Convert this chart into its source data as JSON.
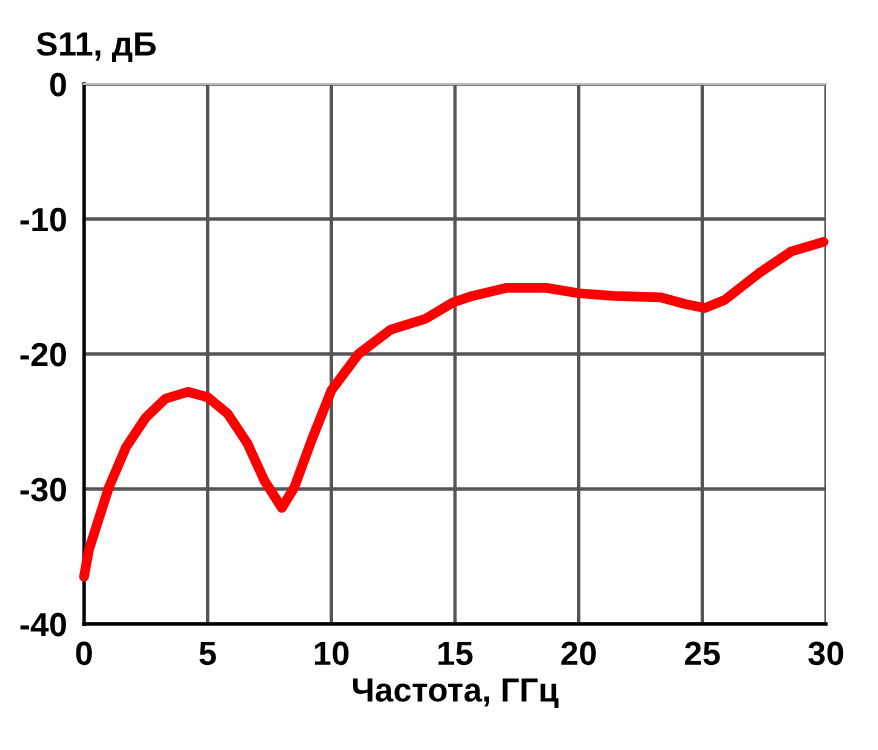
{
  "chart_data": {
    "type": "line",
    "ylabel": "S11, дБ",
    "xlabel": "Частота, ГГц",
    "xlim": [
      0,
      30
    ],
    "ylim": [
      -40,
      0
    ],
    "xticks": [
      0,
      5,
      10,
      15,
      20,
      25,
      30
    ],
    "yticks": [
      -40,
      -30,
      -20,
      -10,
      0
    ],
    "grid": true,
    "marker": "none",
    "line_style": "solid",
    "series": [
      {
        "color": "#ff0000",
        "x": [
          0,
          0.2,
          1.0,
          1.7,
          2.5,
          3.3,
          4.2,
          5.0,
          5.8,
          6.6,
          7.3,
          8.0,
          8.5,
          9.2,
          10.0,
          11.1,
          12.4,
          13.8,
          14.9,
          15.7,
          17.1,
          18.7,
          20.0,
          21.4,
          23.3,
          24.3,
          25.1,
          25.9,
          27.3,
          28.6,
          29.9
        ],
        "values": [
          -36.5,
          -34.5,
          -29.9,
          -26.9,
          -24.7,
          -23.3,
          -22.8,
          -23.2,
          -24.4,
          -26.6,
          -29.4,
          -31.4,
          -29.9,
          -26.4,
          -22.7,
          -20.0,
          -18.2,
          -17.4,
          -16.2,
          -15.7,
          -15.1,
          -15.1,
          -15.5,
          -15.7,
          -15.8,
          -16.3,
          -16.6,
          -16.0,
          -14.0,
          -12.4,
          -11.7
        ]
      }
    ]
  }
}
